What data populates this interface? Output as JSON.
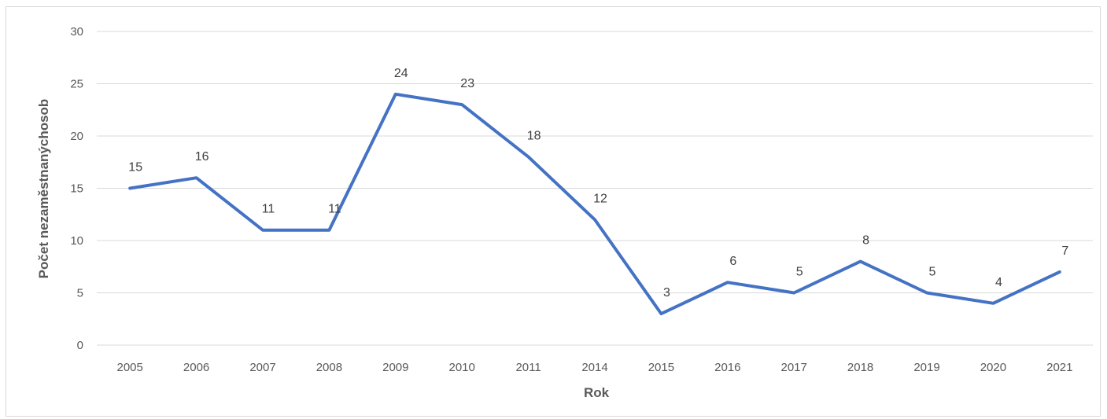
{
  "chart_data": {
    "type": "line",
    "title": "",
    "xlabel": "Rok",
    "ylabel": "Počet nezaměstnanýchosob",
    "categories": [
      "2005",
      "2006",
      "2007",
      "2008",
      "2009",
      "2010",
      "2011",
      "2014",
      "2015",
      "2016",
      "2017",
      "2018",
      "2019",
      "2020",
      "2021"
    ],
    "values": [
      15,
      16,
      11,
      11,
      24,
      23,
      18,
      12,
      3,
      6,
      5,
      8,
      5,
      4,
      7
    ],
    "ylim": [
      0,
      30
    ],
    "yticks": [
      0,
      5,
      10,
      15,
      20,
      25,
      30
    ],
    "grid": "horizontal",
    "legend": "none",
    "line_color": "#4472c4",
    "grid_color": "#d9d9d9"
  }
}
